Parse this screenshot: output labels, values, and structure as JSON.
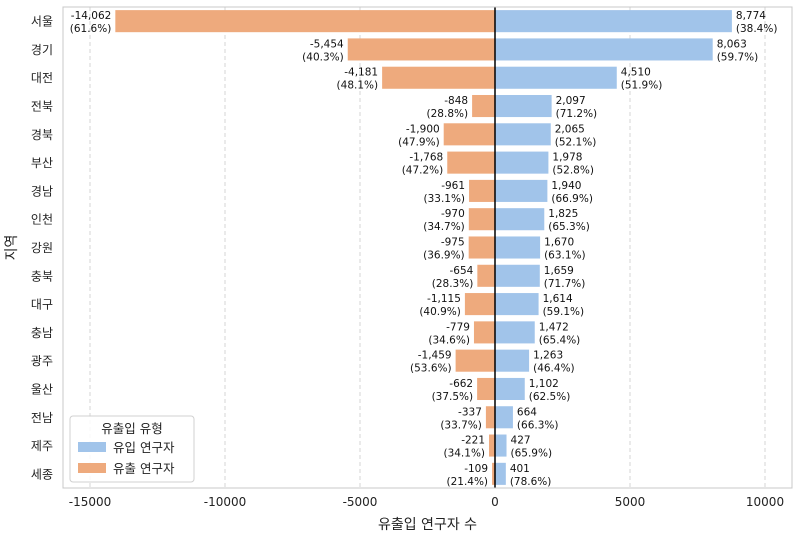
{
  "chart_data": {
    "type": "bar",
    "orientation": "horizontal",
    "xlabel": "유출입 연구자 수",
    "ylabel": "지역",
    "xlim": [
      -16000,
      11000
    ],
    "xticks": [
      -15000,
      -10000,
      -5000,
      0,
      5000,
      10000
    ],
    "xtick_labels": [
      "-15000",
      "-10000",
      "-5000",
      "0",
      "5000",
      "10000"
    ],
    "grid": "vertical dashed",
    "categories": [
      "서울",
      "경기",
      "대전",
      "전북",
      "경북",
      "부산",
      "경남",
      "인천",
      "강원",
      "충북",
      "대구",
      "충남",
      "광주",
      "울산",
      "전남",
      "제주",
      "세종"
    ],
    "series": [
      {
        "name": "유입 연구자",
        "color": "#a1c4ea",
        "values": [
          8774,
          8063,
          4510,
          2097,
          2065,
          1978,
          1940,
          1825,
          1670,
          1659,
          1614,
          1472,
          1263,
          1102,
          664,
          427,
          401
        ],
        "value_labels": [
          "8,774",
          "8,063",
          "4,510",
          "2,097",
          "2,065",
          "1,978",
          "1,940",
          "1,825",
          "1,670",
          "1,659",
          "1,614",
          "1,472",
          "1,263",
          "1,102",
          "664",
          "427",
          "401"
        ],
        "pct_labels": [
          "(38.4%)",
          "(59.7%)",
          "(51.9%)",
          "(71.2%)",
          "(52.1%)",
          "(52.8%)",
          "(66.9%)",
          "(65.3%)",
          "(63.1%)",
          "(71.7%)",
          "(59.1%)",
          "(65.4%)",
          "(46.4%)",
          "(62.5%)",
          "(66.3%)",
          "(65.9%)",
          "(78.6%)"
        ]
      },
      {
        "name": "유출 연구자",
        "color": "#eeaa7d",
        "values": [
          -14062,
          -5454,
          -4181,
          -848,
          -1900,
          -1768,
          -961,
          -970,
          -975,
          -654,
          -1115,
          -779,
          -1459,
          -662,
          -337,
          -221,
          -109
        ],
        "value_labels": [
          "-14,062",
          "-5,454",
          "-4,181",
          "-848",
          "-1,900",
          "-1,768",
          "-961",
          "-970",
          "-975",
          "-654",
          "-1,115",
          "-779",
          "-1,459",
          "-662",
          "-337",
          "-221",
          "-109"
        ],
        "pct_labels": [
          "(61.6%)",
          "(40.3%)",
          "(48.1%)",
          "(28.8%)",
          "(47.9%)",
          "(47.2%)",
          "(33.1%)",
          "(34.7%)",
          "(36.9%)",
          "(28.3%)",
          "(40.9%)",
          "(34.6%)",
          "(53.6%)",
          "(37.5%)",
          "(33.7%)",
          "(34.1%)",
          "(21.4%)"
        ]
      }
    ],
    "legend": {
      "title": "유출입 유형",
      "placement": "lower-left"
    }
  }
}
